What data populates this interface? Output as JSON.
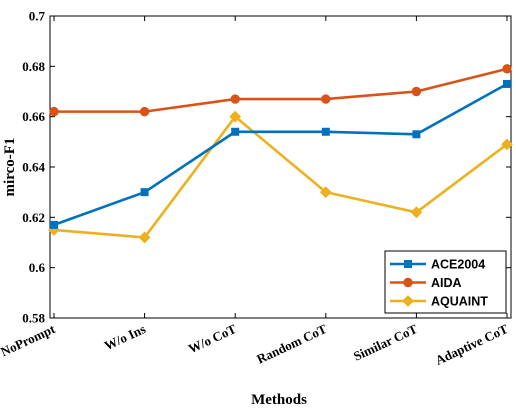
{
  "chart_data": {
    "type": "line",
    "categories": [
      "NoPrompt",
      "W/o Ins",
      "W/o CoT",
      "Random CoT",
      "Similar CoT",
      "Adaptive CoT"
    ],
    "series": [
      {
        "name": "ACE2004",
        "color": "#0072BD",
        "marker": "square",
        "values": [
          0.617,
          0.63,
          0.654,
          0.654,
          0.653,
          0.673
        ]
      },
      {
        "name": "AIDA",
        "color": "#D95319",
        "marker": "circle",
        "values": [
          0.662,
          0.662,
          0.667,
          0.667,
          0.67,
          0.679
        ]
      },
      {
        "name": "AQUAINT",
        "color": "#EDB120",
        "marker": "diamond",
        "values": [
          0.615,
          0.612,
          0.66,
          0.63,
          0.622,
          0.649
        ]
      }
    ],
    "xlabel": "Methods",
    "ylabel": "mirco-F1",
    "ylim": [
      0.58,
      0.7
    ],
    "yticks": [
      "0.58",
      "0.6",
      "0.62",
      "0.64",
      "0.66",
      "0.68",
      "0.7"
    ],
    "grid": false,
    "legend_position": "bottom-right"
  }
}
